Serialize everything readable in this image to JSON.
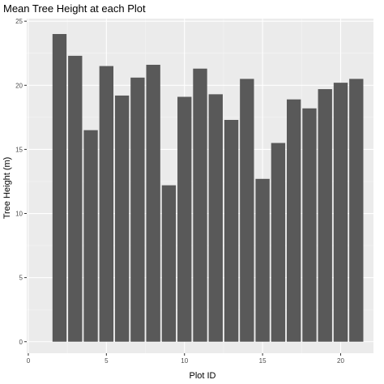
{
  "chart_data": {
    "type": "bar",
    "title": "Mean Tree Height at each Plot",
    "xlabel": "Plot ID",
    "ylabel": "Tree Height (m)",
    "x": [
      2,
      3,
      4,
      5,
      6,
      7,
      8,
      9,
      10,
      11,
      12,
      13,
      14,
      15,
      16,
      17,
      18,
      19,
      20,
      21
    ],
    "values": [
      24.0,
      22.3,
      16.5,
      21.5,
      19.2,
      20.6,
      21.6,
      12.2,
      19.1,
      21.3,
      19.3,
      17.3,
      20.5,
      12.7,
      15.5,
      18.9,
      18.2,
      19.7,
      20.2,
      20.5
    ],
    "xlim": [
      -0.1,
      22.1
    ],
    "ylim": [
      -0.9,
      25.2
    ],
    "xticks": [
      0,
      5,
      10,
      15,
      20
    ],
    "yticks": [
      0,
      5,
      10,
      15,
      20,
      25
    ],
    "grid": true,
    "legend": "none",
    "colors": {
      "bar": "#595959",
      "panel": "#ebebeb",
      "grid_major": "#ffffff",
      "grid_minor": "#f5f5f5",
      "tick": "#333333"
    }
  }
}
